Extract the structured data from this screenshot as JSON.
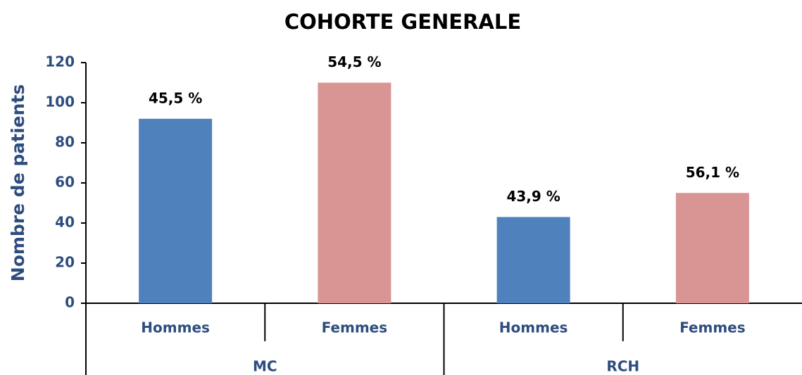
{
  "chart_data": {
    "type": "bar",
    "title": "COHORTE GENERALE",
    "ylabel": "Nombre de patients",
    "categories": [
      "Hommes",
      "Femmes",
      "Hommes",
      "Femmes"
    ],
    "groups": [
      {
        "label": "MC",
        "count": 2
      },
      {
        "label": "RCH",
        "count": 2
      }
    ],
    "values": [
      92,
      110,
      43,
      55
    ],
    "colors": [
      "#4f81bd",
      "#d99594",
      "#4f81bd",
      "#d99594"
    ],
    "annotations": [
      "45,5 %",
      "54,5 %",
      "43,9 %",
      "56,1 %"
    ],
    "ylim": [
      0,
      120
    ],
    "yticks": [
      0,
      20,
      40,
      60,
      80,
      100,
      120
    ],
    "grid": false
  }
}
